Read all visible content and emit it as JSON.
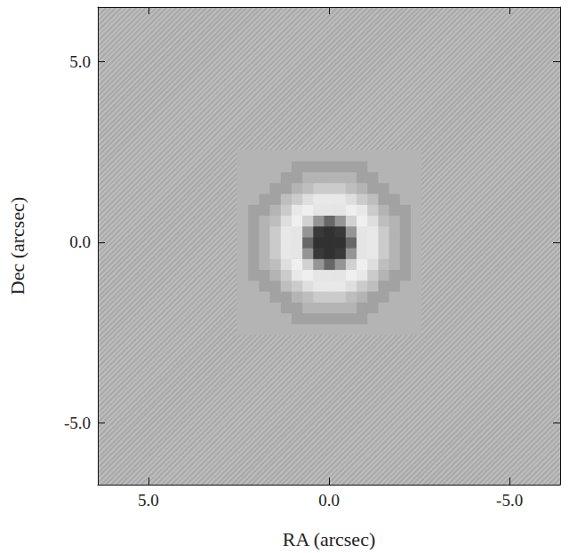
{
  "chart_data": {
    "type": "heatmap",
    "x_label": "RA (arcsec)",
    "y_label": "Dec (arcsec)",
    "xlim": [
      6.4,
      -6.4
    ],
    "ylim": [
      -6.7,
      6.5
    ],
    "xticks": [
      {
        "value": 5,
        "label": "5.0"
      },
      {
        "value": 0,
        "label": "0.0"
      },
      {
        "value": -5,
        "label": "-5.0"
      }
    ],
    "yticks": [
      {
        "value": -5,
        "label": "-5.0"
      },
      {
        "value": 0,
        "label": "0.0"
      },
      {
        "value": 5,
        "label": "5.0"
      }
    ],
    "grid": false,
    "zlim": [
      -1,
      1
    ],
    "x": [
      -2.4,
      -2.1,
      -1.8,
      -1.5,
      -1.2,
      -0.9,
      -0.6,
      -0.3,
      0,
      0.3,
      0.6,
      0.9,
      1.2,
      1.5,
      1.8,
      2.1,
      2.4
    ],
    "y": [
      -2.4,
      -2.1,
      -1.8,
      -1.5,
      -1.2,
      -0.9,
      -0.6,
      -0.3,
      0,
      0.3,
      0.6,
      0.9,
      1.2,
      1.5,
      1.8,
      2.1,
      2.4
    ],
    "cells": [
      [
        0,
        0,
        0,
        0,
        0,
        0,
        0,
        0,
        0,
        0,
        0,
        0,
        0,
        0,
        0,
        0,
        0
      ],
      [
        0,
        0,
        0,
        0,
        0,
        -0.12,
        -0.12,
        -0.12,
        -0.12,
        -0.12,
        -0.12,
        -0.12,
        0,
        0,
        0,
        0,
        0
      ],
      [
        0,
        0,
        0,
        0,
        -0.12,
        -0.12,
        0,
        0,
        0,
        0,
        0,
        -0.12,
        -0.12,
        0,
        0,
        0,
        0
      ],
      [
        0,
        0,
        0,
        -0.12,
        -0.12,
        0,
        0.15,
        0.35,
        0.35,
        0.35,
        0.15,
        0,
        -0.12,
        -0.12,
        0,
        0,
        0
      ],
      [
        0,
        0,
        -0.12,
        -0.12,
        0.15,
        0.35,
        0.65,
        0.8,
        0.8,
        0.8,
        0.65,
        0.35,
        0.15,
        -0.12,
        -0.12,
        0,
        0
      ],
      [
        0,
        -0.12,
        -0.12,
        0,
        0.35,
        0.8,
        0.9,
        0.75,
        0.75,
        0.75,
        0.9,
        0.8,
        0.35,
        0,
        -0.12,
        -0.12,
        0
      ],
      [
        0,
        -0.12,
        0,
        0.15,
        0.65,
        0.9,
        0.45,
        -0.2,
        -0.5,
        -0.2,
        0.45,
        0.9,
        0.65,
        0.15,
        0,
        -0.12,
        0
      ],
      [
        0,
        -0.12,
        0,
        0.35,
        0.8,
        0.75,
        -0.2,
        -0.8,
        -0.85,
        -0.8,
        -0.2,
        0.75,
        0.8,
        0.35,
        0,
        -0.12,
        0
      ],
      [
        0,
        -0.12,
        0,
        0.35,
        0.8,
        0.75,
        -0.5,
        -0.85,
        -0.85,
        -0.85,
        -0.5,
        0.75,
        0.8,
        0.35,
        0,
        -0.12,
        0
      ],
      [
        0,
        -0.12,
        0,
        0.35,
        0.8,
        0.75,
        -0.2,
        -0.8,
        -0.85,
        -0.8,
        -0.2,
        0.75,
        0.8,
        0.35,
        0,
        -0.12,
        0
      ],
      [
        0,
        -0.12,
        0,
        0.15,
        0.65,
        0.9,
        0.45,
        -0.2,
        -0.5,
        -0.2,
        0.45,
        0.9,
        0.65,
        0.15,
        0,
        -0.12,
        0
      ],
      [
        0,
        -0.12,
        -0.12,
        0,
        0.35,
        0.8,
        0.9,
        0.75,
        0.75,
        0.75,
        0.9,
        0.8,
        0.35,
        0,
        -0.12,
        -0.12,
        0
      ],
      [
        0,
        0,
        -0.12,
        -0.12,
        0.15,
        0.35,
        0.65,
        0.8,
        0.8,
        0.8,
        0.65,
        0.35,
        0.15,
        -0.12,
        -0.12,
        0,
        0
      ],
      [
        0,
        0,
        0,
        -0.12,
        -0.12,
        0,
        0.15,
        0.35,
        0.35,
        0.35,
        0.15,
        0,
        -0.12,
        -0.12,
        0,
        0,
        0
      ],
      [
        0,
        0,
        0,
        0,
        -0.12,
        -0.12,
        0,
        0,
        0,
        0,
        0,
        -0.12,
        -0.12,
        0,
        0,
        0,
        0
      ],
      [
        0,
        0,
        0,
        0,
        0,
        -0.12,
        -0.12,
        -0.12,
        -0.12,
        -0.12,
        -0.12,
        -0.12,
        0,
        0,
        0,
        0,
        0
      ],
      [
        0,
        0,
        0,
        0,
        0,
        0,
        0,
        0,
        0,
        0,
        0,
        0,
        0,
        0,
        0,
        0,
        0
      ]
    ]
  }
}
